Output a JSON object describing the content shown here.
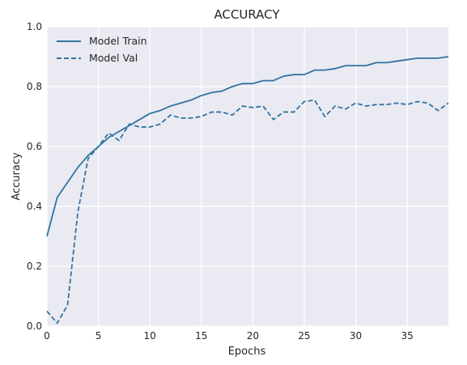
{
  "chart_data": {
    "type": "line",
    "title": "ACCURACY",
    "xlabel": "Epochs",
    "ylabel": "Accuracy",
    "xlim": [
      0,
      39
    ],
    "ylim": [
      0,
      1.0
    ],
    "xticks": [
      "0",
      "5",
      "10",
      "15",
      "20",
      "25",
      "30",
      "35"
    ],
    "yticks": [
      "0.0",
      "0.2",
      "0.4",
      "0.6",
      "0.8",
      "1.0"
    ],
    "grid": true,
    "legend_position": "top-left",
    "x": [
      0,
      1,
      2,
      3,
      4,
      5,
      6,
      7,
      8,
      9,
      10,
      11,
      12,
      13,
      14,
      15,
      16,
      17,
      18,
      19,
      20,
      21,
      22,
      23,
      24,
      25,
      26,
      27,
      28,
      29,
      30,
      31,
      32,
      33,
      34,
      35,
      36,
      37,
      38,
      39
    ],
    "series": [
      {
        "name": "Model Train",
        "style": "solid",
        "color": "#3274a1",
        "values": [
          0.3,
          0.43,
          0.48,
          0.53,
          0.57,
          0.6,
          0.63,
          0.65,
          0.67,
          0.69,
          0.71,
          0.72,
          0.735,
          0.745,
          0.755,
          0.77,
          0.78,
          0.785,
          0.8,
          0.81,
          0.81,
          0.82,
          0.82,
          0.835,
          0.84,
          0.84,
          0.855,
          0.855,
          0.86,
          0.87,
          0.87,
          0.87,
          0.88,
          0.88,
          0.885,
          0.89,
          0.895,
          0.895,
          0.895,
          0.9
        ]
      },
      {
        "name": "Model Val",
        "style": "dashed",
        "color": "#3274a1",
        "values": [
          0.05,
          0.01,
          0.07,
          0.38,
          0.56,
          0.6,
          0.645,
          0.62,
          0.675,
          0.665,
          0.665,
          0.675,
          0.705,
          0.695,
          0.695,
          0.7,
          0.715,
          0.715,
          0.705,
          0.735,
          0.73,
          0.735,
          0.69,
          0.715,
          0.715,
          0.75,
          0.755,
          0.7,
          0.735,
          0.725,
          0.745,
          0.735,
          0.74,
          0.74,
          0.745,
          0.74,
          0.75,
          0.745,
          0.72,
          0.745
        ]
      }
    ]
  }
}
